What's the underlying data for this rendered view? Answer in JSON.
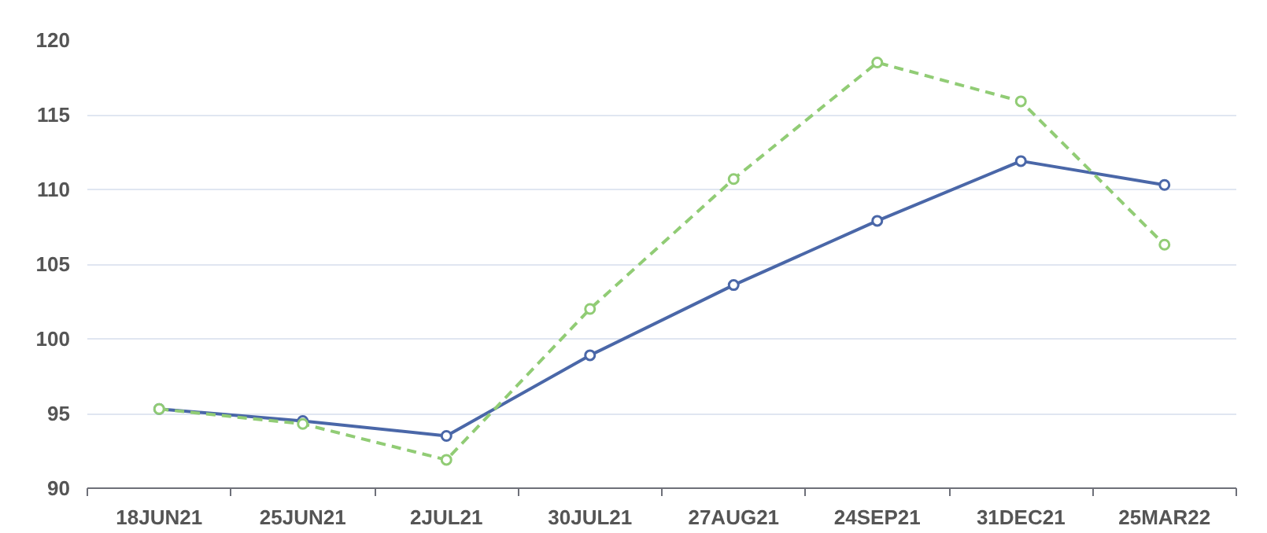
{
  "chart_data": {
    "type": "line",
    "categories": [
      "18JUN21",
      "25JUN21",
      "2JUL21",
      "30JUL21",
      "27AUG21",
      "24SEP21",
      "31DEC21",
      "25MAR22"
    ],
    "series": [
      {
        "color": "#4a67a8",
        "line_style": "solid",
        "values": [
          95.3,
          94.5,
          93.5,
          98.9,
          103.6,
          107.9,
          111.9,
          110.3
        ]
      },
      {
        "color": "#91cc75",
        "line_style": "dashed",
        "values": [
          95.3,
          94.3,
          91.9,
          102.0,
          110.7,
          118.5,
          115.9,
          106.3
        ]
      }
    ],
    "ylim": [
      90,
      120
    ],
    "yticks": [
      90,
      95,
      100,
      105,
      110,
      115,
      120
    ],
    "grid": "y",
    "marker": "circle"
  }
}
